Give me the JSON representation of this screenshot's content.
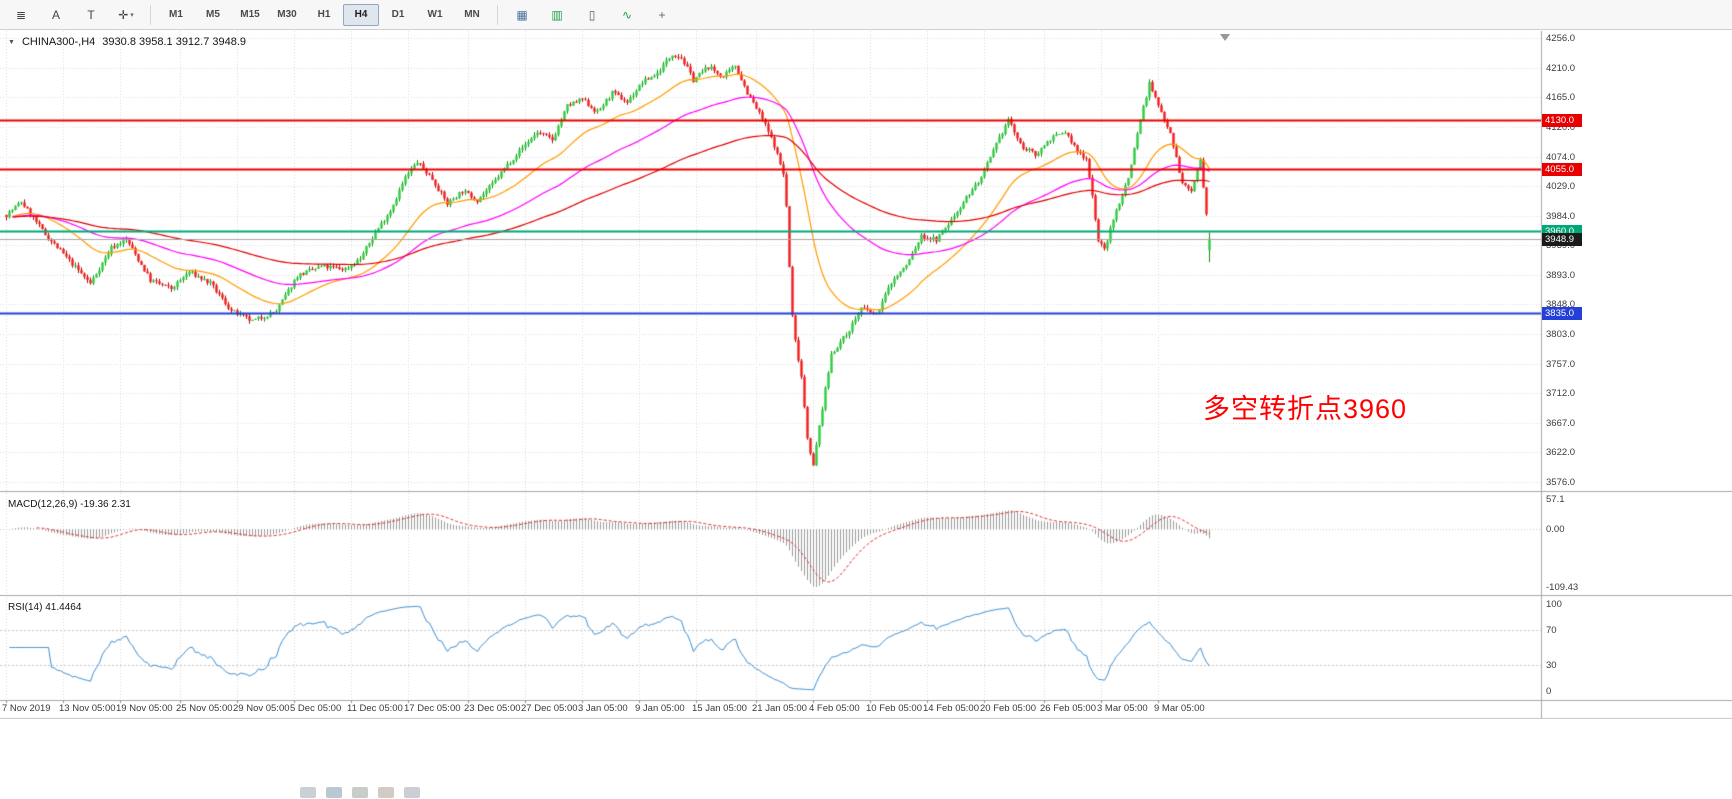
{
  "toolbar": {
    "left_tools": [
      {
        "name": "charts-menu-icon",
        "glyph": "≣"
      },
      {
        "name": "pointer-tool-icon",
        "glyph": "A"
      },
      {
        "name": "text-tool-icon",
        "glyph": "T"
      },
      {
        "name": "crosshair-tool-icon",
        "glyph": "✛",
        "dropdown": true
      }
    ],
    "timeframes": [
      "M1",
      "M5",
      "M15",
      "M30",
      "H1",
      "H4",
      "D1",
      "W1",
      "MN"
    ],
    "active_timeframe": "H4",
    "right_tools": [
      {
        "name": "tile-windows-icon",
        "glyph": "▦",
        "color": "#46719c"
      },
      {
        "name": "bar-chart-icon",
        "glyph": "▥",
        "color": "#1d9e45"
      },
      {
        "name": "candlestick-chart-icon",
        "glyph": "▯",
        "color": "#5a5a5a"
      },
      {
        "name": "line-chart-icon",
        "glyph": "∿",
        "color": "#1d9e45"
      },
      {
        "name": "zoom-in-icon",
        "glyph": "+",
        "color": "#666666"
      }
    ]
  },
  "chart": {
    "title_symbol": "CHINA300-,H4",
    "ohlc_text": "3930.8 3958.1 3912.7 3948.9",
    "annotation": "多空转折点3960"
  },
  "chart_data": {
    "type": "candlestick",
    "symbol": "CHINA300",
    "timeframe": "H4",
    "current_bar_ohlc": {
      "open": 3930.8,
      "high": 3958.1,
      "low": 3912.7,
      "close": 3948.9
    },
    "y_ticks": [
      "4256.0",
      "4210.0",
      "4165.0",
      "4120.0",
      "4074.0",
      "4029.0",
      "3984.0",
      "3939.0",
      "3893.0",
      "3848.0",
      "3803.0",
      "3757.0",
      "3712.0",
      "3667.0",
      "3622.0",
      "3576.0"
    ],
    "x_labels": [
      "7 Nov 2019",
      "13 Nov 05:00",
      "19 Nov 05:00",
      "25 Nov 05:00",
      "29 Nov 05:00",
      "5 Dec 05:00",
      "11 Dec 05:00",
      "17 Dec 05:00",
      "23 Dec 05:00",
      "27 Dec 05:00",
      "3 Jan 05:00",
      "9 Jan 05:00",
      "15 Jan 05:00",
      "21 Jan 05:00",
      "4 Feb 05:00",
      "10 Feb 05:00",
      "14 Feb 05:00",
      "20 Feb 05:00",
      "26 Feb 05:00",
      "3 Mar 05:00",
      "9 Mar 05:00"
    ],
    "x_tick_bars": [
      0,
      19,
      38,
      58,
      77,
      96,
      115,
      134,
      154,
      173,
      192,
      211,
      230,
      250,
      269,
      288,
      307,
      326,
      346,
      365,
      384
    ],
    "bars_total": 402,
    "volatility": 7,
    "close_waypoints": [
      [
        0,
        3985
      ],
      [
        5,
        4005
      ],
      [
        13,
        3955
      ],
      [
        20,
        3920
      ],
      [
        28,
        3880
      ],
      [
        35,
        3935
      ],
      [
        40,
        3948
      ],
      [
        48,
        3885
      ],
      [
        55,
        3872
      ],
      [
        61,
        3898
      ],
      [
        68,
        3880
      ],
      [
        75,
        3838
      ],
      [
        82,
        3822
      ],
      [
        90,
        3838
      ],
      [
        97,
        3892
      ],
      [
        105,
        3906
      ],
      [
        113,
        3902
      ],
      [
        118,
        3918
      ],
      [
        123,
        3958
      ],
      [
        128,
        3992
      ],
      [
        133,
        4042
      ],
      [
        137,
        4066
      ],
      [
        142,
        4040
      ],
      [
        147,
        4002
      ],
      [
        152,
        4022
      ],
      [
        157,
        4008
      ],
      [
        162,
        4032
      ],
      [
        167,
        4062
      ],
      [
        172,
        4088
      ],
      [
        177,
        4112
      ],
      [
        182,
        4100
      ],
      [
        187,
        4152
      ],
      [
        192,
        4162
      ],
      [
        197,
        4142
      ],
      [
        202,
        4172
      ],
      [
        207,
        4158
      ],
      [
        212,
        4188
      ],
      [
        217,
        4202
      ],
      [
        222,
        4232
      ],
      [
        225,
        4226
      ],
      [
        229,
        4192
      ],
      [
        234,
        4212
      ],
      [
        239,
        4196
      ],
      [
        243,
        4214
      ],
      [
        247,
        4172
      ],
      [
        252,
        4132
      ],
      [
        256,
        4092
      ],
      [
        259,
        4048
      ],
      [
        260,
        3998
      ],
      [
        261,
        3905
      ],
      [
        262,
        3830
      ],
      [
        263,
        3792
      ],
      [
        265,
        3738
      ],
      [
        267,
        3645
      ],
      [
        269,
        3600
      ],
      [
        271,
        3662
      ],
      [
        275,
        3772
      ],
      [
        280,
        3802
      ],
      [
        285,
        3842
      ],
      [
        290,
        3832
      ],
      [
        295,
        3882
      ],
      [
        300,
        3908
      ],
      [
        305,
        3952
      ],
      [
        310,
        3947
      ],
      [
        315,
        3977
      ],
      [
        320,
        4012
      ],
      [
        325,
        4042
      ],
      [
        330,
        4092
      ],
      [
        334,
        4132
      ],
      [
        338,
        4092
      ],
      [
        343,
        4077
      ],
      [
        348,
        4102
      ],
      [
        353,
        4112
      ],
      [
        357,
        4082
      ],
      [
        360,
        4072
      ],
      [
        362,
        4015
      ],
      [
        364,
        3945
      ],
      [
        366,
        3932
      ],
      [
        370,
        3992
      ],
      [
        374,
        4042
      ],
      [
        378,
        4132
      ],
      [
        381,
        4186
      ],
      [
        384,
        4152
      ],
      [
        388,
        4112
      ],
      [
        392,
        4032
      ],
      [
        395,
        4022
      ],
      [
        398,
        4068
      ],
      [
        400,
        3985
      ],
      [
        401,
        3948.9
      ]
    ],
    "candle_colors": {
      "bull": "#2ecc40",
      "bull_wick": "#159015",
      "bear": "#f21b1b",
      "bear_wick": "#b30d0d"
    },
    "moving_averages": [
      {
        "name": "ma-fast",
        "period": 30,
        "color": "#ff9c00"
      },
      {
        "name": "ma-mid",
        "period": 72,
        "color": "#ff00ff"
      },
      {
        "name": "ma-slow",
        "period": 150,
        "color": "#e00000"
      }
    ],
    "horizontal_lines": [
      {
        "price": 4130.0,
        "tag": "4130.0",
        "color": "#e80000",
        "width": 2
      },
      {
        "price": 4055.0,
        "tag": "4055.0",
        "color": "#e80000",
        "width": 2
      },
      {
        "price": 3960.0,
        "tag": "3960.0",
        "color": "#00a878",
        "width": 2
      },
      {
        "price": 3835.0,
        "tag": "3835.0",
        "color": "#2440d8",
        "width": 2
      }
    ],
    "current_price": {
      "value": 3948.9,
      "tag": "3948.9",
      "line_color": "#a6a6a6",
      "tag_bg": "#1b1b1b"
    },
    "indicators": [
      {
        "id": "macd",
        "label": "MACD(12,26,9) -19.36 2.31",
        "params": [
          12,
          26,
          9
        ],
        "values": [
          -19.36,
          2.31
        ],
        "ticks": [
          "57.1",
          "0.00",
          "-109.43"
        ],
        "hist_color": "#9b9b9b",
        "signal_color": "#e03131"
      },
      {
        "id": "rsi",
        "label": "RSI(14) 41.4464",
        "period": 14,
        "value": 41.4464,
        "ticks": [
          "100",
          "70",
          "30",
          "0"
        ],
        "levels": [
          70,
          30
        ],
        "line_color": "#3f8fd0"
      }
    ]
  },
  "bottom": {
    "icons": [
      {
        "name": "taskbar-icon",
        "color": "#c2c8ce"
      },
      {
        "name": "taskbar-icon",
        "color": "#aebfc9"
      },
      {
        "name": "taskbar-icon",
        "color": "#bcc6bd"
      },
      {
        "name": "taskbar-icon",
        "color": "#c8c2b8"
      },
      {
        "name": "taskbar-icon",
        "color": "#c4c4cc"
      }
    ]
  }
}
